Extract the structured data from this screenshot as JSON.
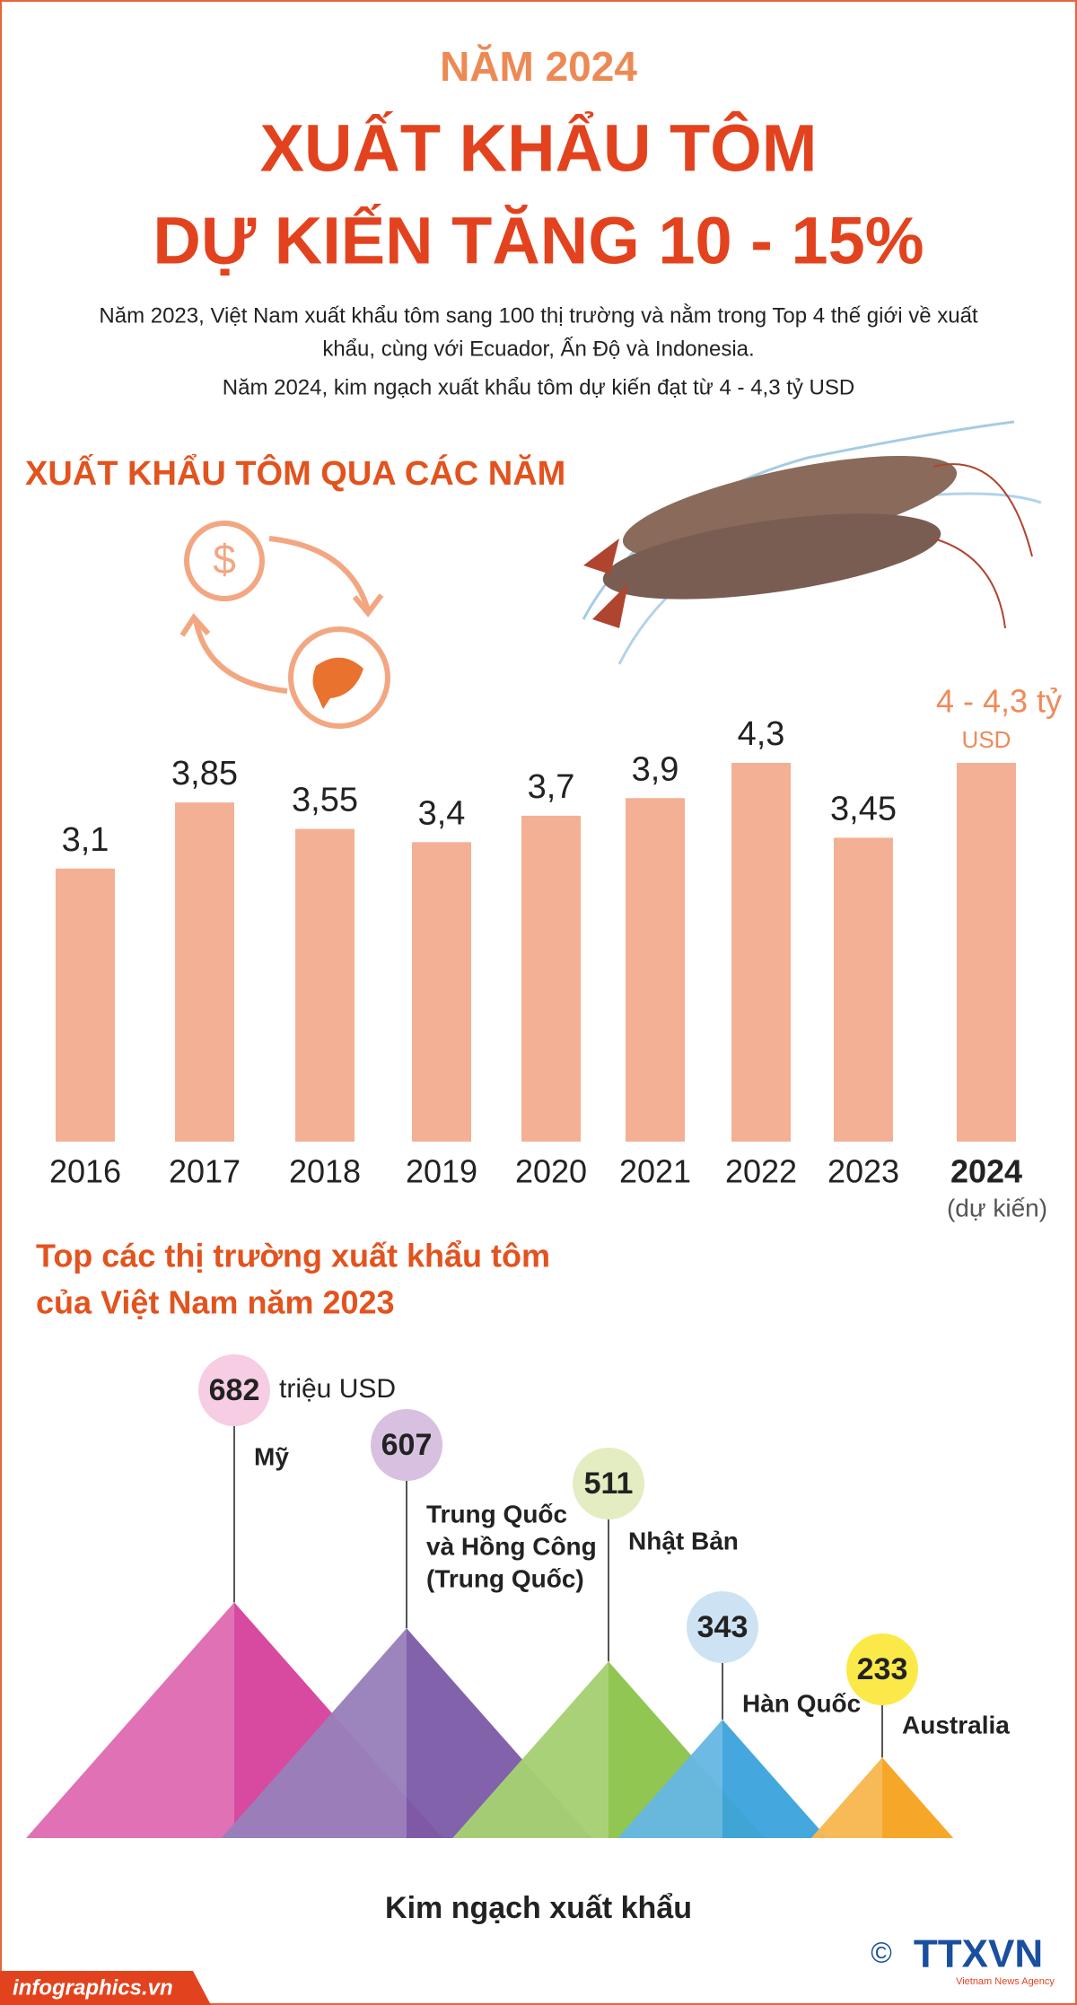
{
  "header": {
    "kicker": "NĂM 2024",
    "title": [
      "XUẤT KHẨU TÔM",
      "DỰ KIẾN TĂNG 10 - 15%"
    ],
    "intro": [
      "Năm 2023, Việt Nam xuất khẩu tôm sang 100 thị trường và nằm trong Top 4 thế giới về xuất",
      "khẩu, cùng với Ecuador, Ấn Độ và Indonesia.",
      "Năm 2024, kim ngạch xuất khẩu tôm dự kiến đạt từ 4 - 4,3 tỷ USD"
    ]
  },
  "chart_data": [
    {
      "type": "bar",
      "title": "XUẤT KHẨU TÔM QUA CÁC NĂM",
      "categories": [
        "2016",
        "2017",
        "2018",
        "2019",
        "2020",
        "2021",
        "2022",
        "2023",
        "2024"
      ],
      "category_note": "(dự kiến)",
      "values": [
        3.1,
        3.85,
        3.55,
        3.4,
        3.7,
        3.9,
        4.3,
        3.45,
        4.3
      ],
      "value_labels": [
        "3,1",
        "3,85",
        "3,55",
        "3,4",
        "3,7",
        "3,9",
        "4,3",
        "3,45",
        "4 - 4,3 tỷ"
      ],
      "value_unit": "USD",
      "color": "#f4b094"
    },
    {
      "type": "pyramid",
      "title": [
        "Top các thị trường xuất khẩu tôm",
        "của Việt Nam năm 2023"
      ],
      "categories": [
        [
          "Mỹ"
        ],
        [
          "Trung Quốc",
          "và Hồng Công",
          "(Trung Quốc)"
        ],
        [
          "Nhật Bản"
        ],
        [
          "Hàn Quốc"
        ],
        [
          "Australia"
        ]
      ],
      "values": [
        682,
        607,
        511,
        343,
        233
      ],
      "value_unit": "triệu USD",
      "x_label": "Kim ngạch xuất khẩu",
      "colors": [
        "#d6409a",
        "#7a5aa6",
        "#8bc34a",
        "#3aa3dc",
        "#f7a21b"
      ],
      "bubble_colors": [
        "#f6cde3",
        "#d8c0e0",
        "#e3edc1",
        "#cde3f3",
        "#fbe94a"
      ]
    }
  ],
  "footer": {
    "source": "infographics.vn",
    "copyright": "©",
    "logo": "TTXVN",
    "logo_sub": "Vietnam News Agency"
  }
}
